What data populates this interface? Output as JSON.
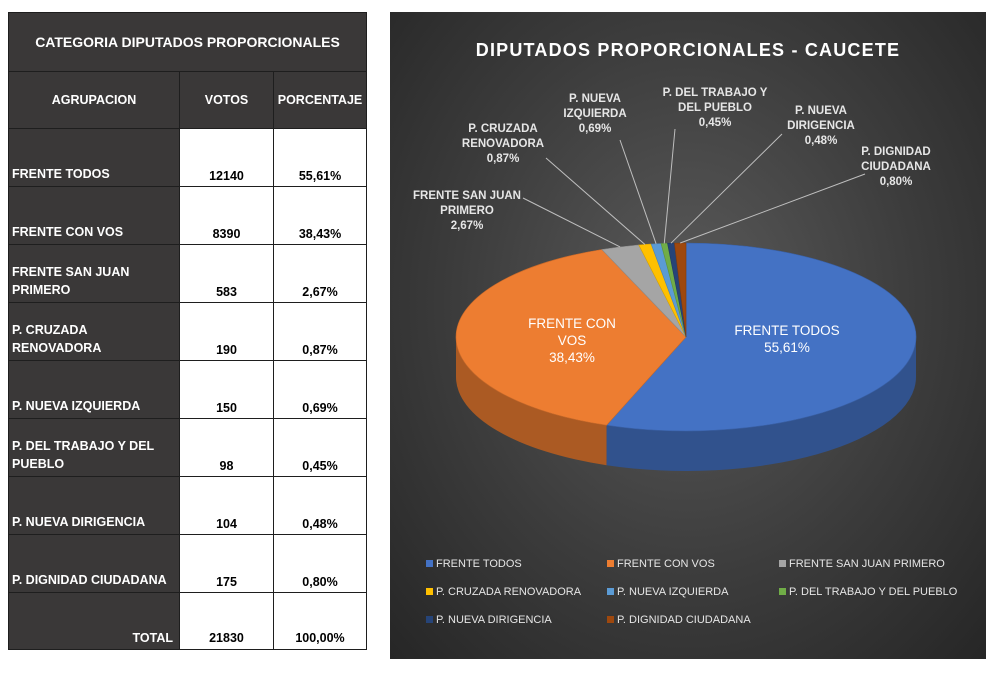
{
  "table": {
    "title": "CATEGORIA DIPUTADOS PROPORCIONALES",
    "headers": [
      "AGRUPACION",
      "VOTOS",
      "PORCENTAJE"
    ],
    "rows": [
      {
        "name": "FRENTE TODOS",
        "votes": "12140",
        "pct": "55,61%"
      },
      {
        "name": "FRENTE CON VOS",
        "votes": "8390",
        "pct": "38,43%"
      },
      {
        "name": "FRENTE SAN JUAN PRIMERO",
        "votes": "583",
        "pct": "2,67%"
      },
      {
        "name": "P. CRUZADA RENOVADORA",
        "votes": "190",
        "pct": "0,87%"
      },
      {
        "name": "P. NUEVA IZQUIERDA",
        "votes": "150",
        "pct": "0,69%"
      },
      {
        "name": "P. DEL TRABAJO Y DEL PUEBLO",
        "votes": "98",
        "pct": "0,45%"
      },
      {
        "name": "P. NUEVA DIRIGENCIA",
        "votes": "104",
        "pct": "0,48%"
      },
      {
        "name": "P. DIGNIDAD CIUDADANA",
        "votes": "175",
        "pct": "0,80%"
      }
    ],
    "total": {
      "label": "TOTAL",
      "votes": "21830",
      "pct": "100,00%"
    }
  },
  "chart_data": {
    "type": "pie",
    "title": "DIPUTADOS PROPORCIONALES - CAUCETE",
    "legend_position": "bottom",
    "slices": [
      {
        "name": "FRENTE TODOS",
        "value": 55.61,
        "color": "#4472c4",
        "label_lines": [
          "FRENTE TODOS",
          "55,61%"
        ]
      },
      {
        "name": "FRENTE CON VOS",
        "value": 38.43,
        "color": "#ed7d31",
        "label_lines": [
          "FRENTE CON",
          "VOS",
          "38,43%"
        ]
      },
      {
        "name": "FRENTE SAN JUAN PRIMERO",
        "value": 2.67,
        "color": "#a5a5a5",
        "label_lines": [
          "FRENTE SAN JUAN",
          "PRIMERO",
          "2,67%"
        ]
      },
      {
        "name": "P. CRUZADA RENOVADORA",
        "value": 0.87,
        "color": "#ffc000",
        "label_lines": [
          "P. CRUZADA",
          "RENOVADORA",
          "0,87%"
        ]
      },
      {
        "name": "P. NUEVA IZQUIERDA",
        "value": 0.69,
        "color": "#5b9bd5",
        "label_lines": [
          "P. NUEVA",
          "IZQUIERDA",
          "0,69%"
        ]
      },
      {
        "name": "P. DEL TRABAJO Y DEL PUEBLO",
        "value": 0.45,
        "color": "#70ad47",
        "label_lines": [
          "P. DEL TRABAJO Y",
          "DEL PUEBLO",
          "0,45%"
        ]
      },
      {
        "name": "P. NUEVA DIRIGENCIA",
        "value": 0.48,
        "color": "#264478",
        "label_lines": [
          "P. NUEVA",
          "DIRIGENCIA",
          "0,48%"
        ]
      },
      {
        "name": "P. DIGNIDAD CIUDADANA",
        "value": 0.8,
        "color": "#9e480e",
        "label_lines": [
          "P. DIGNIDAD",
          "CIUDADANA",
          "0,80%"
        ]
      }
    ]
  }
}
